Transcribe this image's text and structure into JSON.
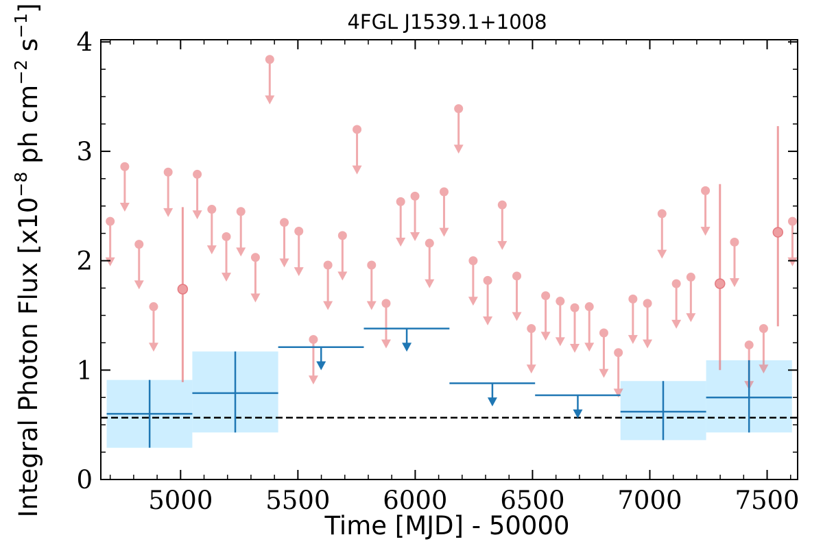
{
  "chart_data": {
    "type": "scatter",
    "title": "4FGL J1539.1+1008",
    "xlabel": "Time [MJD] - 50000",
    "ylabel": "Integral Photon Flux [x10",
    "ylabel_exponent": "−8",
    "ylabel_units": " ph cm",
    "ylabel_exponent2": "−2",
    "ylabel_units2": " s",
    "ylabel_exponent3": "−1",
    "ylabel_close": "]",
    "xlim": [
      4660,
      7630
    ],
    "ylim": [
      0,
      4.02
    ],
    "x_ticks": [
      {
        "value": 5000,
        "label": "5000"
      },
      {
        "value": 5500,
        "label": "5500"
      },
      {
        "value": 6000,
        "label": "6000"
      },
      {
        "value": 6500,
        "label": "6500"
      },
      {
        "value": 7000,
        "label": "7000"
      },
      {
        "value": 7500,
        "label": "7500"
      }
    ],
    "y_ticks": [
      {
        "value": 0,
        "label": "0"
      },
      {
        "value": 1,
        "label": "1"
      },
      {
        "value": 2,
        "label": "2"
      },
      {
        "value": 3,
        "label": "3"
      },
      {
        "value": 4,
        "label": "4"
      }
    ],
    "grid": false,
    "mean_flux": 0.565,
    "colors": {
      "short_bins": "#e8777c",
      "long_bins": "#1f77b4",
      "long_bins_fill": "#cdeeff",
      "mean_line": "#000000"
    },
    "short_bin_upper_limits": [
      {
        "x": 4700,
        "y": 2.36
      },
      {
        "x": 4762,
        "y": 2.86
      },
      {
        "x": 4823,
        "y": 2.15
      },
      {
        "x": 4885,
        "y": 1.58
      },
      {
        "x": 4947,
        "y": 2.81
      },
      {
        "x": 5071,
        "y": 2.79
      },
      {
        "x": 5133,
        "y": 2.47
      },
      {
        "x": 5195,
        "y": 2.22
      },
      {
        "x": 5257,
        "y": 2.45
      },
      {
        "x": 5319,
        "y": 2.03
      },
      {
        "x": 5380,
        "y": 3.84
      },
      {
        "x": 5442,
        "y": 2.35
      },
      {
        "x": 5504,
        "y": 2.27
      },
      {
        "x": 5566,
        "y": 1.28
      },
      {
        "x": 5628,
        "y": 1.96
      },
      {
        "x": 5690,
        "y": 2.23
      },
      {
        "x": 5752,
        "y": 3.2
      },
      {
        "x": 5814,
        "y": 1.96
      },
      {
        "x": 5876,
        "y": 1.61
      },
      {
        "x": 5938,
        "y": 2.54
      },
      {
        "x": 5999,
        "y": 2.59
      },
      {
        "x": 6061,
        "y": 2.16
      },
      {
        "x": 6123,
        "y": 2.63
      },
      {
        "x": 6185,
        "y": 3.39
      },
      {
        "x": 6247,
        "y": 2.0
      },
      {
        "x": 6309,
        "y": 1.82
      },
      {
        "x": 6371,
        "y": 2.51
      },
      {
        "x": 6433,
        "y": 1.86
      },
      {
        "x": 6495,
        "y": 1.38
      },
      {
        "x": 6556,
        "y": 1.68
      },
      {
        "x": 6618,
        "y": 1.63
      },
      {
        "x": 6680,
        "y": 1.57
      },
      {
        "x": 6742,
        "y": 1.58
      },
      {
        "x": 6804,
        "y": 1.34
      },
      {
        "x": 6866,
        "y": 1.16
      },
      {
        "x": 6928,
        "y": 1.65
      },
      {
        "x": 6990,
        "y": 1.61
      },
      {
        "x": 7052,
        "y": 2.43
      },
      {
        "x": 7113,
        "y": 1.79
      },
      {
        "x": 7175,
        "y": 1.85
      },
      {
        "x": 7237,
        "y": 2.64
      },
      {
        "x": 7361,
        "y": 2.17
      },
      {
        "x": 7423,
        "y": 1.23
      },
      {
        "x": 7485,
        "y": 1.38
      },
      {
        "x": 7608,
        "y": 2.36
      }
    ],
    "short_bin_detections": [
      {
        "x": 5009,
        "y": 1.74,
        "ylow": 0.89,
        "yhigh": 2.49
      },
      {
        "x": 7299,
        "y": 1.79,
        "ylow": 1.0,
        "yhigh": 2.7
      },
      {
        "x": 7546,
        "y": 2.26,
        "ylow": 1.4,
        "yhigh": 3.23
      }
    ],
    "long_bin_detections": [
      {
        "x": 4868,
        "xlow": 4685,
        "xhigh": 5050,
        "y": 0.6,
        "ylow": 0.29,
        "yhigh": 0.91
      },
      {
        "x": 5233,
        "xlow": 5050,
        "xhigh": 5416,
        "y": 0.79,
        "ylow": 0.43,
        "yhigh": 1.17
      },
      {
        "x": 7057,
        "xlow": 6875,
        "xhigh": 7240,
        "y": 0.62,
        "ylow": 0.36,
        "yhigh": 0.9
      },
      {
        "x": 7423,
        "xlow": 7240,
        "xhigh": 7606,
        "y": 0.75,
        "ylow": 0.43,
        "yhigh": 1.09
      }
    ],
    "long_bin_upper_limits": [
      {
        "x": 5599,
        "xlow": 5416,
        "xhigh": 5781,
        "y": 1.21
      },
      {
        "x": 5964,
        "xlow": 5781,
        "xhigh": 6146,
        "y": 1.38
      },
      {
        "x": 6329,
        "xlow": 6146,
        "xhigh": 6511,
        "y": 0.88
      },
      {
        "x": 6693,
        "xlow": 6511,
        "xhigh": 6875,
        "y": 0.77
      }
    ]
  }
}
